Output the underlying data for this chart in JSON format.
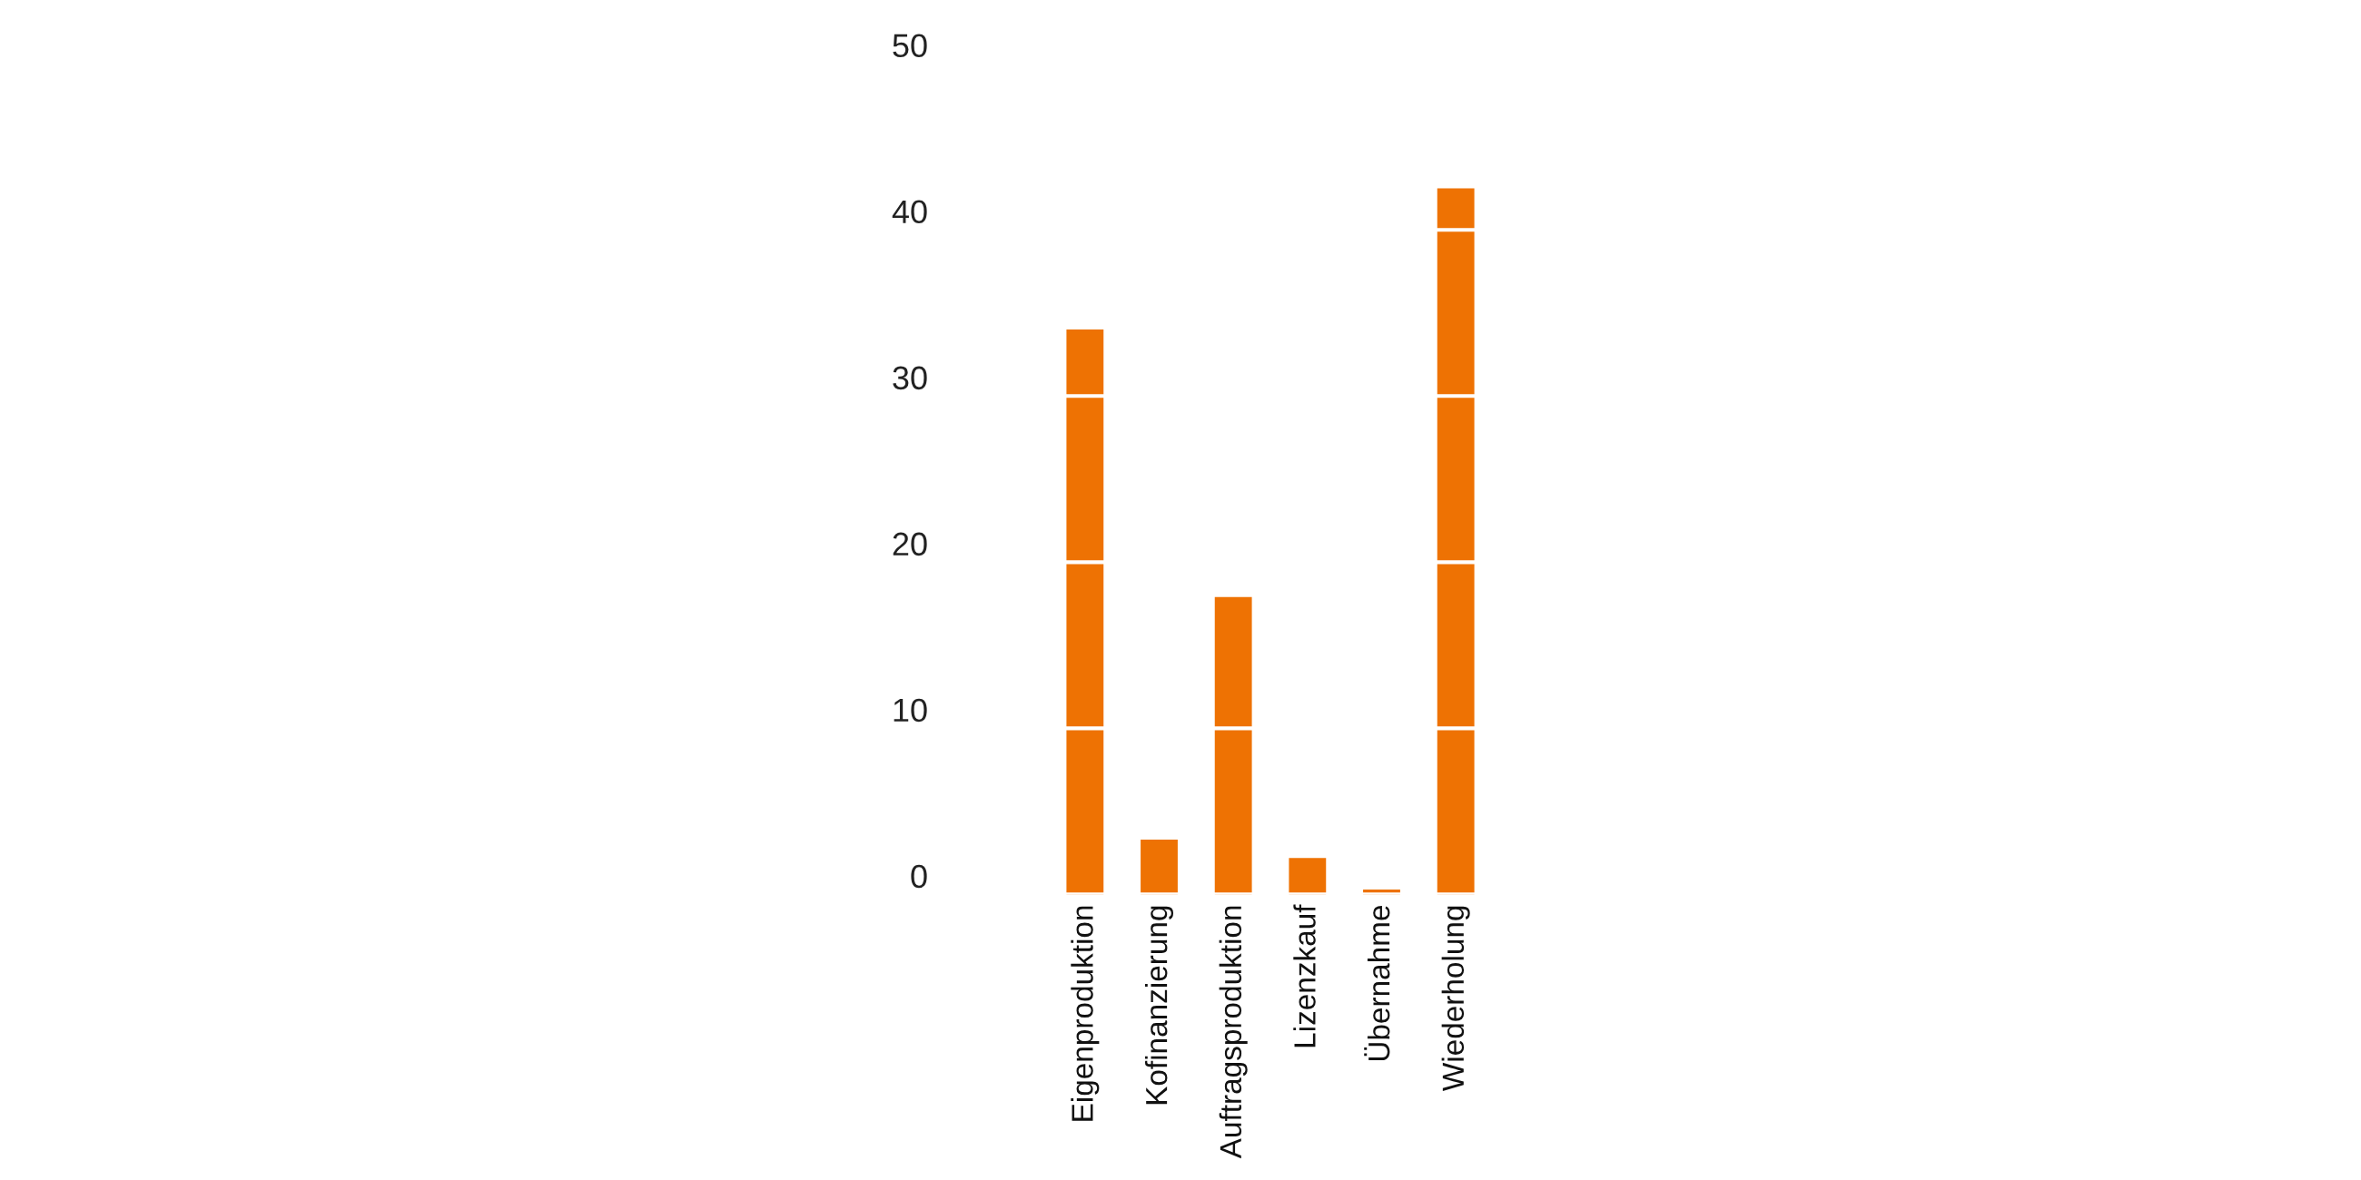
{
  "chart_data": {
    "type": "bar",
    "categories": [
      "Eigenproduktion",
      "Kofinanzierung",
      "Auftragsproduktion",
      "Lizenzkauf",
      "Übernahme",
      "Wiederholung"
    ],
    "values": [
      34,
      3.3,
      17.9,
      2.2,
      0.3,
      42.5
    ],
    "color": "#ee7203",
    "ylim": [
      0,
      50
    ],
    "yticks": [
      0,
      10,
      20,
      30,
      40,
      50
    ],
    "grid": "y"
  }
}
